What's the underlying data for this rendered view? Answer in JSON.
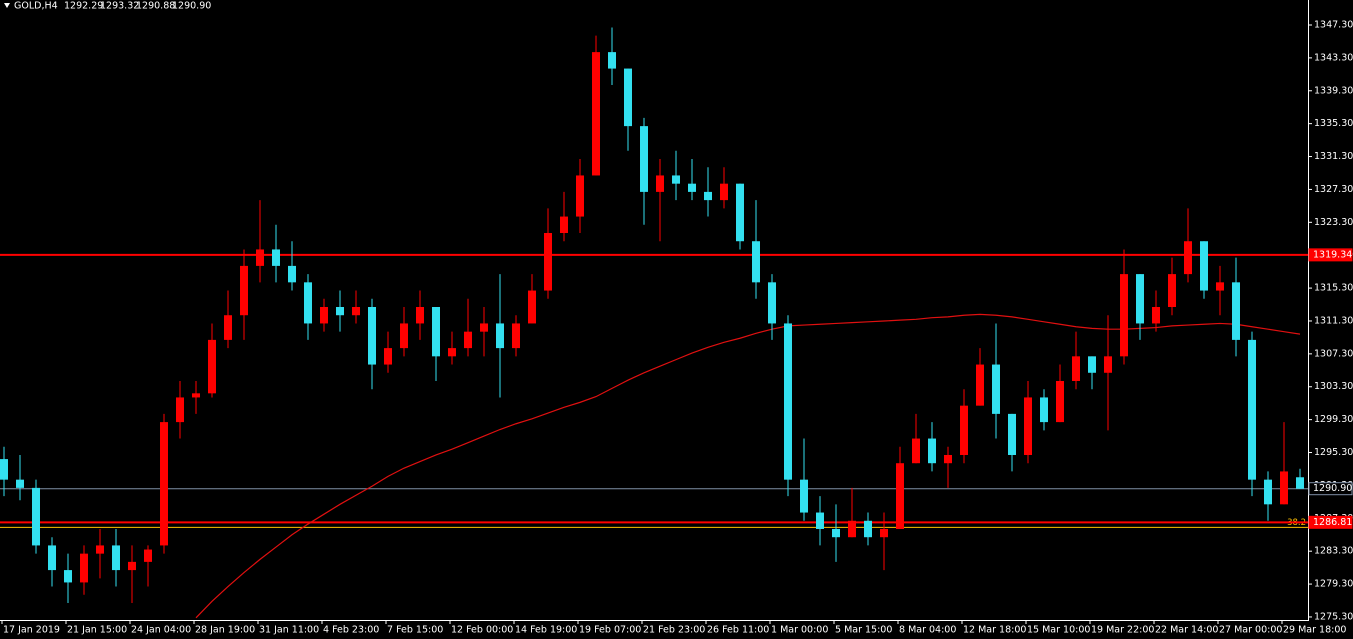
{
  "chart_data": {
    "type": "candlestick",
    "symbol": "GOLD,H4",
    "header_ohlc": [
      "1292.29",
      "1293.32",
      "1290.88",
      "1290.90"
    ],
    "up_color": "#ff0000",
    "down_color": "#33e0f0",
    "ylim": [
      1274.93,
      1350.34
    ],
    "yticks": [
      {
        "value": 1347.3,
        "label": "1347.30"
      },
      {
        "value": 1343.3,
        "label": "1343.30"
      },
      {
        "value": 1339.3,
        "label": "1339.30"
      },
      {
        "value": 1335.3,
        "label": "1335.30"
      },
      {
        "value": 1331.3,
        "label": "1331.30"
      },
      {
        "value": 1327.3,
        "label": "1327.30"
      },
      {
        "value": 1323.3,
        "label": "1323.30"
      },
      {
        "value": 1319.3,
        "label": "1319.30"
      },
      {
        "value": 1315.3,
        "label": "1315.30"
      },
      {
        "value": 1311.3,
        "label": "1311.30"
      },
      {
        "value": 1307.3,
        "label": "1307.30"
      },
      {
        "value": 1303.3,
        "label": "1303.30"
      },
      {
        "value": 1299.3,
        "label": "1299.30"
      },
      {
        "value": 1295.3,
        "label": "1295.30"
      },
      {
        "value": 1291.3,
        "label": "1291.30"
      },
      {
        "value": 1287.3,
        "label": "1287.30"
      },
      {
        "value": 1283.3,
        "label": "1283.30"
      },
      {
        "value": 1279.3,
        "label": "1279.30"
      },
      {
        "value": 1275.3,
        "label": "1275.30"
      }
    ],
    "xticks": [
      {
        "value": 0,
        "label": "17 Jan 2019"
      },
      {
        "value": 4,
        "label": "21 Jan 15:00"
      },
      {
        "value": 8,
        "label": "24 Jan 04:00"
      },
      {
        "value": 12,
        "label": "28 Jan 19:00"
      },
      {
        "value": 16,
        "label": "31 Jan 11:00"
      },
      {
        "value": 20,
        "label": "4 Feb 23:00"
      },
      {
        "value": 24,
        "label": "7 Feb 15:00"
      },
      {
        "value": 28,
        "label": "12 Feb 00:00"
      },
      {
        "value": 32,
        "label": "14 Feb 19:00"
      },
      {
        "value": 36,
        "label": "19 Feb 07:00"
      },
      {
        "value": 40,
        "label": "21 Feb 23:00"
      },
      {
        "value": 44,
        "label": "26 Feb 11:00"
      },
      {
        "value": 48,
        "label": "1 Mar 00:00"
      },
      {
        "value": 52,
        "label": "5 Mar 15:00"
      },
      {
        "value": 56,
        "label": "8 Mar 04:00"
      },
      {
        "value": 60,
        "label": "12 Mar 18:00"
      },
      {
        "value": 64,
        "label": "15 Mar 10:00"
      },
      {
        "value": 68,
        "label": "19 Mar 22:00"
      },
      {
        "value": 72,
        "label": "22 Mar 14:00"
      },
      {
        "value": 76,
        "label": "27 Mar 00:00"
      },
      {
        "value": 80,
        "label": "29 Mar 18:00"
      }
    ],
    "candles": {
      "open": [
        1294.5,
        1292,
        1291,
        1284,
        1281,
        1279.5,
        1283,
        1284,
        1281,
        1282,
        1284,
        1299,
        1302,
        1302.5,
        1309,
        1312,
        1318,
        1320,
        1318,
        1316,
        1311,
        1313,
        1312,
        1313,
        1306,
        1308,
        1311,
        1313,
        1307,
        1308,
        1310,
        1311,
        1308,
        1311,
        1315,
        1322,
        1324,
        1329,
        1344,
        1342,
        1335,
        1327,
        1329,
        1328,
        1327,
        1326,
        1328,
        1321,
        1316,
        1311,
        1292,
        1288,
        1286,
        1285,
        1287,
        1285,
        1286,
        1294,
        1297,
        1294,
        1295,
        1301,
        1306,
        1300,
        1295,
        1302,
        1299,
        1304,
        1307,
        1305,
        1307,
        1317,
        1311,
        1313,
        1317,
        1321,
        1315,
        1316,
        1309,
        1292,
        1289,
        1292.29
      ],
      "high": [
        1296,
        1295,
        1292,
        1285,
        1283,
        1284,
        1286,
        1286,
        1284,
        1284,
        1300,
        1304,
        1304,
        1311,
        1315,
        1320,
        1326,
        1323,
        1321,
        1317,
        1314,
        1315,
        1315,
        1314,
        1310,
        1313,
        1315,
        1313,
        1310,
        1314,
        1313,
        1317,
        1312,
        1317,
        1325,
        1327,
        1331,
        1346,
        1347,
        1342,
        1336,
        1331,
        1332,
        1331,
        1330,
        1330,
        1328,
        1326,
        1317,
        1312,
        1297,
        1290,
        1289,
        1291,
        1288,
        1288,
        1296,
        1300,
        1299,
        1296,
        1303,
        1308,
        1311,
        1300,
        1304,
        1303,
        1306,
        1310,
        1307,
        1312,
        1320,
        1317,
        1315,
        1319,
        1325,
        1321,
        1318,
        1319,
        1310,
        1293,
        1299,
        1293.32
      ],
      "low": [
        1290,
        1289.5,
        1283,
        1279,
        1277,
        1278,
        1280,
        1279,
        1277,
        1279,
        1283,
        1297,
        1300,
        1302,
        1308,
        1309,
        1316,
        1316,
        1315,
        1309,
        1310,
        1310,
        1311,
        1303,
        1305,
        1307,
        1309,
        1304,
        1306,
        1307,
        1307,
        1302,
        1307,
        1311,
        1314,
        1321,
        1322,
        1329,
        1340,
        1332,
        1323,
        1321,
        1326,
        1326,
        1324,
        1325,
        1320,
        1314,
        1309,
        1290,
        1287,
        1284,
        1282,
        1285,
        1284,
        1281,
        1286,
        1294,
        1293,
        1291,
        1294,
        1301,
        1297,
        1293,
        1294,
        1298,
        1299,
        1303,
        1303,
        1298,
        1306,
        1309,
        1310,
        1312,
        1316,
        1314,
        1312,
        1307,
        1290,
        1287,
        1289,
        1290.88
      ],
      "close": [
        1292,
        1291,
        1284,
        1281,
        1279.5,
        1283,
        1284,
        1281,
        1282,
        1283.5,
        1299,
        1302,
        1302.5,
        1309,
        1312,
        1318,
        1320,
        1318,
        1316,
        1311,
        1313,
        1312,
        1313,
        1306,
        1308,
        1311,
        1313,
        1307,
        1308,
        1310,
        1311,
        1308,
        1311,
        1315,
        1322,
        1324,
        1329,
        1344,
        1342,
        1335,
        1327,
        1329,
        1328,
        1327,
        1326,
        1328,
        1321,
        1316,
        1311,
        1292,
        1288,
        1286,
        1285,
        1287,
        1285,
        1286,
        1294,
        1297,
        1294,
        1295,
        1301,
        1306,
        1300,
        1295,
        1302,
        1299,
        1304,
        1307,
        1305,
        1307,
        1317,
        1311,
        1313,
        1317,
        1321,
        1315,
        1316,
        1309,
        1292,
        1289,
        1293,
        1290.9
      ]
    },
    "ma": {
      "color": "#e01010",
      "values": [
        null,
        null,
        null,
        null,
        null,
        null,
        null,
        null,
        null,
        null,
        null,
        null,
        1275.2,
        1277.2,
        1279.0,
        1280.7,
        1282.3,
        1283.8,
        1285.3,
        1286.6,
        1287.8,
        1289.0,
        1290.1,
        1291.2,
        1292.4,
        1293.4,
        1294.2,
        1295.0,
        1295.7,
        1296.5,
        1297.3,
        1298.1,
        1298.8,
        1299.4,
        1300.1,
        1300.8,
        1301.4,
        1302.1,
        1303.1,
        1304.1,
        1305.0,
        1305.8,
        1306.6,
        1307.4,
        1308.1,
        1308.7,
        1309.2,
        1309.8,
        1310.3,
        1310.7,
        1310.8,
        1310.9,
        1311.0,
        1311.1,
        1311.2,
        1311.3,
        1311.4,
        1311.5,
        1311.7,
        1311.8,
        1312.0,
        1312.1,
        1312.0,
        1311.8,
        1311.5,
        1311.2,
        1310.9,
        1310.6,
        1310.4,
        1310.3,
        1310.3,
        1310.4,
        1310.5,
        1310.7,
        1310.8,
        1310.9,
        1311.0,
        1310.9,
        1310.6,
        1310.3,
        1310.0,
        1309.7
      ]
    },
    "levels": [
      {
        "price": 1319.34,
        "color": "#ff0000",
        "label_bg": "#ff0000"
      },
      {
        "price": 1286.81,
        "color": "#ff0000",
        "label_bg": "#ff0000"
      },
      {
        "price": {
          "value": 1290.9,
          "label": "1290.90"
        },
        "color": "#7f8fa6",
        "label_bg": "#000000"
      }
    ],
    "fib": {
      "level": 38.2,
      "price": 1286.2,
      "color": "#ffc000"
    }
  }
}
